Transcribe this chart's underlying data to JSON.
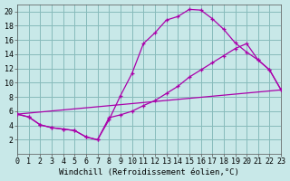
{
  "bg_color": "#c8e8e8",
  "grid_color": "#88bbbb",
  "line_color": "#aa00aa",
  "xlabel": "Windchill (Refroidissement éolien,°C)",
  "xlabel_fontsize": 6.5,
  "xlim": [
    0,
    23
  ],
  "ylim": [
    0,
    21
  ],
  "xticks": [
    0,
    1,
    2,
    3,
    4,
    5,
    6,
    7,
    8,
    9,
    10,
    11,
    12,
    13,
    14,
    15,
    16,
    17,
    18,
    19,
    20,
    21,
    22,
    23
  ],
  "yticks": [
    2,
    4,
    6,
    8,
    10,
    12,
    14,
    16,
    18,
    20
  ],
  "tick_fontsize": 6.0,
  "curve1_x": [
    0,
    1,
    2,
    3,
    4,
    5,
    6,
    7,
    8,
    9,
    10,
    11,
    12,
    13,
    14,
    15,
    16,
    17,
    18,
    19,
    20,
    21,
    22,
    23
  ],
  "curve1_y": [
    5.6,
    5.2,
    4.1,
    3.7,
    3.5,
    3.3,
    2.4,
    2.0,
    4.8,
    8.2,
    11.3,
    15.5,
    17.0,
    18.8,
    19.3,
    20.3,
    20.2,
    19.0,
    17.5,
    15.6,
    14.3,
    13.2,
    11.8,
    9.0
  ],
  "curve2_x": [
    0,
    1,
    2,
    3,
    4,
    5,
    6,
    7,
    8,
    9,
    10,
    11,
    12,
    13,
    14,
    15,
    16,
    17,
    18,
    19,
    20,
    21,
    22,
    23
  ],
  "curve2_y": [
    5.6,
    5.2,
    4.1,
    3.7,
    3.5,
    3.3,
    2.4,
    2.0,
    5.1,
    5.5,
    6.0,
    6.8,
    7.5,
    8.5,
    9.5,
    10.8,
    11.8,
    12.8,
    13.8,
    14.8,
    15.5,
    13.2,
    11.8,
    9.0
  ],
  "curve3_x": [
    0,
    23
  ],
  "curve3_y": [
    5.6,
    9.0
  ]
}
